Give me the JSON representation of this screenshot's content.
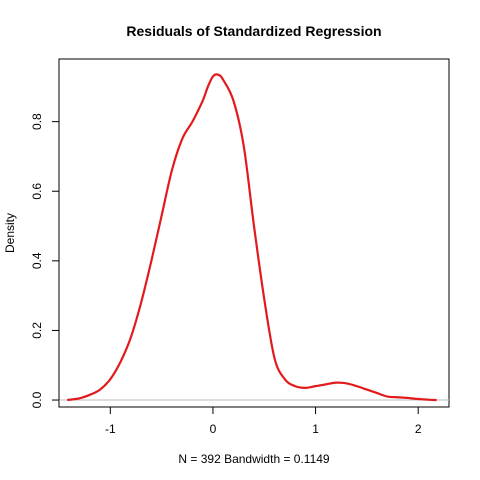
{
  "chart_data": {
    "type": "line",
    "title": "Residuals of Standardized Regression",
    "xlabel": "N = 392   Bandwidth = 0.1149",
    "ylabel": "Density",
    "xlim": [
      -1.5,
      2.3
    ],
    "ylim": [
      -0.02,
      0.98
    ],
    "x_ticks": [
      -1,
      0,
      1,
      2
    ],
    "x_tick_labels": [
      "-1",
      "0",
      "1",
      "2"
    ],
    "y_ticks": [
      0.0,
      0.2,
      0.4,
      0.6,
      0.8
    ],
    "y_tick_labels": [
      "0.0",
      "0.2",
      "0.4",
      "0.6",
      "0.8"
    ],
    "baseline": 0,
    "grid": false,
    "series": [
      {
        "color": "#e31a1c",
        "x": [
          -1.42,
          -1.3,
          -1.2,
          -1.1,
          -1.0,
          -0.9,
          -0.8,
          -0.7,
          -0.6,
          -0.5,
          -0.4,
          -0.3,
          -0.2,
          -0.1,
          -0.05,
          0.0,
          0.05,
          0.1,
          0.2,
          0.3,
          0.4,
          0.5,
          0.6,
          0.7,
          0.8,
          0.9,
          1.0,
          1.1,
          1.2,
          1.3,
          1.4,
          1.5,
          1.6,
          1.7,
          1.8,
          1.9,
          2.0,
          2.1,
          2.18
        ],
        "y": [
          0.0,
          0.005,
          0.015,
          0.03,
          0.06,
          0.11,
          0.18,
          0.28,
          0.4,
          0.53,
          0.66,
          0.75,
          0.8,
          0.86,
          0.9,
          0.93,
          0.935,
          0.92,
          0.86,
          0.73,
          0.5,
          0.29,
          0.12,
          0.06,
          0.04,
          0.035,
          0.04,
          0.045,
          0.05,
          0.048,
          0.04,
          0.03,
          0.02,
          0.01,
          0.008,
          0.006,
          0.003,
          0.001,
          0.0
        ]
      }
    ]
  }
}
